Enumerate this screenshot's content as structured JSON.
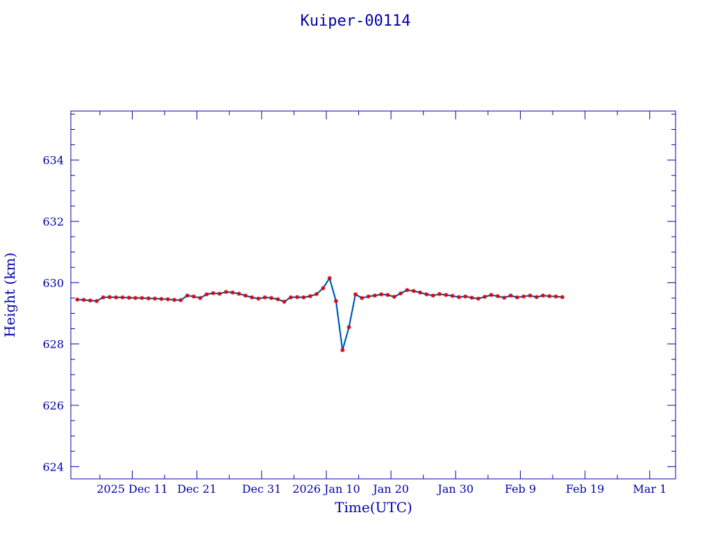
{
  "chart_data": {
    "type": "line",
    "title": "Kuiper-00114",
    "xlabel": "Time(UTC)",
    "ylabel": "Height (km)",
    "ylim": [
      623.6,
      635.6
    ],
    "xlim": [
      "2025-12-01T12:00",
      "2026-03-05T00:00"
    ],
    "y_ticks": [
      624,
      626,
      628,
      630,
      632,
      634
    ],
    "x_ticks": [
      {
        "date": "2025-12-11",
        "label": "2025 Dec 11"
      },
      {
        "date": "2025-12-21",
        "label": "Dec 21"
      },
      {
        "date": "2025-12-31",
        "label": "Dec 31"
      },
      {
        "date": "2026-01-10",
        "label": "2026 Jan 10"
      },
      {
        "date": "2026-01-20",
        "label": "Jan 20"
      },
      {
        "date": "2026-01-30",
        "label": "Jan 30"
      },
      {
        "date": "2026-02-09",
        "label": "Feb  9"
      },
      {
        "date": "2026-02-19",
        "label": "Feb 19"
      },
      {
        "date": "2026-03-01",
        "label": "Mar  1"
      }
    ],
    "grid": false,
    "colors": {
      "line": "#0000aa",
      "markers": "#dd0000",
      "secondary": "#00cccc",
      "axes": "#0000aa"
    },
    "series": [
      {
        "x": [
          "2025-12-02",
          "2025-12-03",
          "2025-12-04",
          "2025-12-05",
          "2025-12-06",
          "2025-12-07",
          "2025-12-08",
          "2025-12-09",
          "2025-12-10",
          "2025-12-11",
          "2025-12-12",
          "2025-12-13",
          "2025-12-14",
          "2025-12-15",
          "2025-12-16",
          "2025-12-17",
          "2025-12-18",
          "2025-12-19",
          "2025-12-20",
          "2025-12-21",
          "2025-12-22",
          "2025-12-23",
          "2025-12-24",
          "2025-12-25",
          "2025-12-26",
          "2025-12-27",
          "2025-12-28",
          "2025-12-29",
          "2025-12-30",
          "2025-12-31",
          "2026-01-01",
          "2026-01-02",
          "2026-01-03",
          "2026-01-04",
          "2026-01-05",
          "2026-01-06",
          "2026-01-07",
          "2026-01-08",
          "2026-01-09",
          "2026-01-10",
          "2026-01-11",
          "2026-01-12",
          "2026-01-13",
          "2026-01-14",
          "2026-01-15",
          "2026-01-16",
          "2026-01-17",
          "2026-01-18",
          "2026-01-19",
          "2026-01-20",
          "2026-01-21",
          "2026-01-22",
          "2026-01-23",
          "2026-01-24",
          "2026-01-25",
          "2026-01-26",
          "2026-01-27",
          "2026-01-28",
          "2026-01-29",
          "2026-01-30",
          "2026-01-31",
          "2026-02-01",
          "2026-02-02",
          "2026-02-03",
          "2026-02-04",
          "2026-02-05",
          "2026-02-06",
          "2026-02-07",
          "2026-02-08",
          "2026-02-09",
          "2026-02-10",
          "2026-02-11",
          "2026-02-12",
          "2026-02-13",
          "2026-02-14",
          "2026-02-15"
        ],
        "values": [
          629.45,
          629.44,
          629.42,
          629.4,
          629.52,
          629.53,
          629.52,
          629.52,
          629.51,
          629.5,
          629.5,
          629.49,
          629.48,
          629.47,
          629.46,
          629.44,
          629.43,
          629.58,
          629.55,
          629.5,
          629.62,
          629.66,
          629.64,
          629.7,
          629.68,
          629.64,
          629.58,
          629.52,
          629.48,
          629.52,
          629.5,
          629.46,
          629.38,
          629.52,
          629.53,
          629.52,
          629.56,
          629.63,
          629.82,
          630.15,
          629.4,
          627.8,
          628.55,
          629.62,
          629.5,
          629.55,
          629.58,
          629.62,
          629.6,
          629.54,
          629.65,
          629.76,
          629.73,
          629.68,
          629.62,
          629.58,
          629.63,
          629.6,
          629.57,
          629.53,
          629.55,
          629.51,
          629.48,
          629.54,
          629.6,
          629.56,
          629.51,
          629.58,
          629.52,
          629.55,
          629.58,
          629.53,
          629.58,
          629.56,
          629.55,
          629.53
        ]
      }
    ]
  }
}
